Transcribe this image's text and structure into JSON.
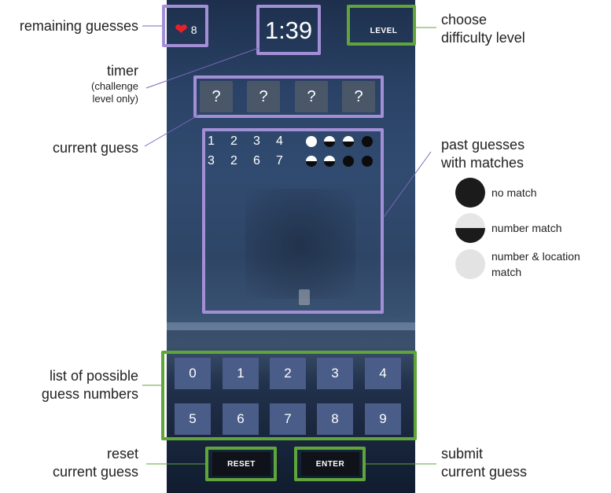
{
  "game": {
    "remaining_guesses": "8",
    "timer": "1:39",
    "level_button": "LEVEL",
    "current_guess": [
      "?",
      "?",
      "?",
      "?"
    ],
    "past_guesses": [
      {
        "digits": [
          "1",
          "2",
          "3",
          "4"
        ],
        "pegs": [
          "full",
          "half",
          "half",
          "none"
        ]
      },
      {
        "digits": [
          "3",
          "2",
          "6",
          "7"
        ],
        "pegs": [
          "half",
          "half",
          "none",
          "none"
        ]
      }
    ],
    "number_keys": [
      "0",
      "1",
      "2",
      "3",
      "4",
      "5",
      "6",
      "7",
      "8",
      "9"
    ],
    "reset_button": "RESET",
    "enter_button": "ENTER"
  },
  "annotations": {
    "remaining_guesses": "remaining guesses",
    "timer_title": "timer",
    "timer_note_line1": "(challenge",
    "timer_note_line2": "level only)",
    "current_guess": "current guess",
    "choose_level_line1": "choose",
    "choose_level_line2": "difficulty level",
    "past_guesses_line1": "past guesses",
    "past_guesses_line2": "with matches",
    "possible_numbers_line1": "list of possible",
    "possible_numbers_line2": "guess numbers",
    "reset_line1": "reset",
    "reset_line2": "current guess",
    "submit_line1": "submit",
    "submit_line2": "current guess"
  },
  "legend": {
    "no_match": "no match",
    "number_match": "number match",
    "number_location_line1": "number & location",
    "number_location_line2": "match"
  },
  "colors": {
    "purple_box": "#a38fd6",
    "green_box": "#5fa53a",
    "heart": "#e8202a",
    "key_bg": "#4a5c88"
  }
}
